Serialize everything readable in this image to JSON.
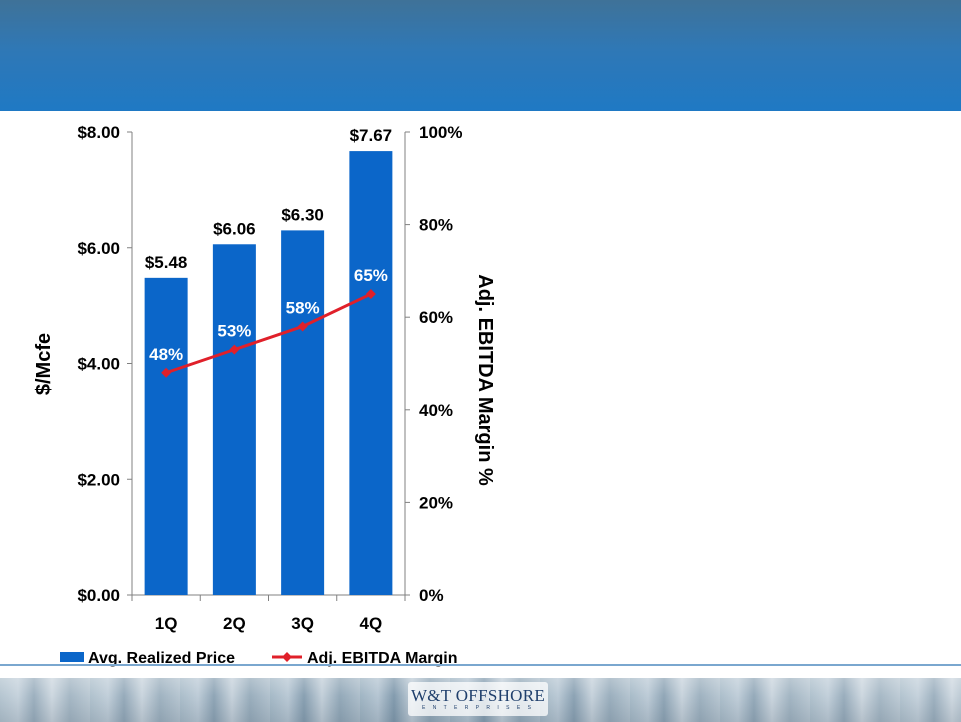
{
  "logo": {
    "text": "W&T OFFSHORE",
    "subtext": "E N T E R P R I S E S"
  },
  "chart_data": {
    "type": "bar",
    "categories": [
      "1Q",
      "2Q",
      "3Q",
      "4Q"
    ],
    "series": [
      {
        "name": "Avg. Realized Price",
        "type": "bar",
        "axis": "left",
        "values": [
          5.48,
          6.06,
          6.3,
          7.67
        ],
        "labels": [
          "$5.48",
          "$6.06",
          "$6.30",
          "$7.67"
        ],
        "color": "#0b66c9"
      },
      {
        "name": "Adj. EBITDA Margin",
        "type": "line",
        "axis": "right",
        "values": [
          48,
          53,
          58,
          65
        ],
        "labels": [
          "48%",
          "53%",
          "58%",
          "65%"
        ],
        "color": "#e0202a"
      }
    ],
    "y_left": {
      "label": "$/Mcfe",
      "range": [
        0,
        8
      ],
      "ticks": [
        0,
        2,
        4,
        6,
        8
      ],
      "tick_labels": [
        "$0.00",
        "$2.00",
        "$4.00",
        "$6.00",
        "$8.00"
      ]
    },
    "y_right": {
      "label": "Adj. EBITDA Margin %",
      "range": [
        0,
        100
      ],
      "ticks": [
        0,
        20,
        40,
        60,
        80,
        100
      ],
      "tick_labels": [
        "0%",
        "20%",
        "40%",
        "60%",
        "80%",
        "100%"
      ]
    },
    "grid": false,
    "legend_position": "bottom"
  }
}
